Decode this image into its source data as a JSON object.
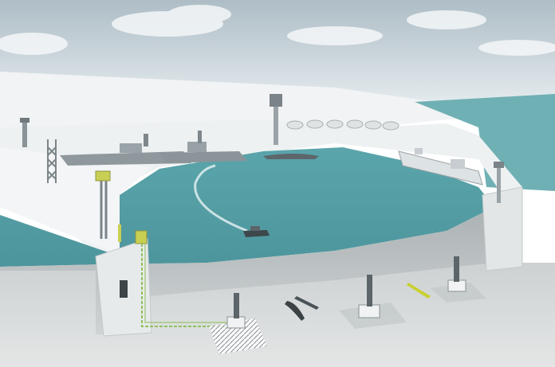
{
  "scene": {
    "subject": "harbor-security-illustration",
    "palette": {
      "sky_top": "#b9c7cf",
      "sky_bottom": "#e6ecef",
      "water": "#5fa9ae",
      "water_light": "#7fc2c6",
      "quay": "#eef1f2",
      "quay_shadow": "#c9d0d3",
      "seabed": "#d9dcdd",
      "ship_gray": "#8c969b",
      "accent_yellow": "#c9cf52",
      "cable_green": "#8fc15a"
    },
    "elements": [
      "radar-mast",
      "surveillance-tower",
      "warships",
      "tanker",
      "storage-tanks",
      "patrol-boat",
      "underwater-sonar-sensors",
      "underwater-vehicle"
    ]
  }
}
